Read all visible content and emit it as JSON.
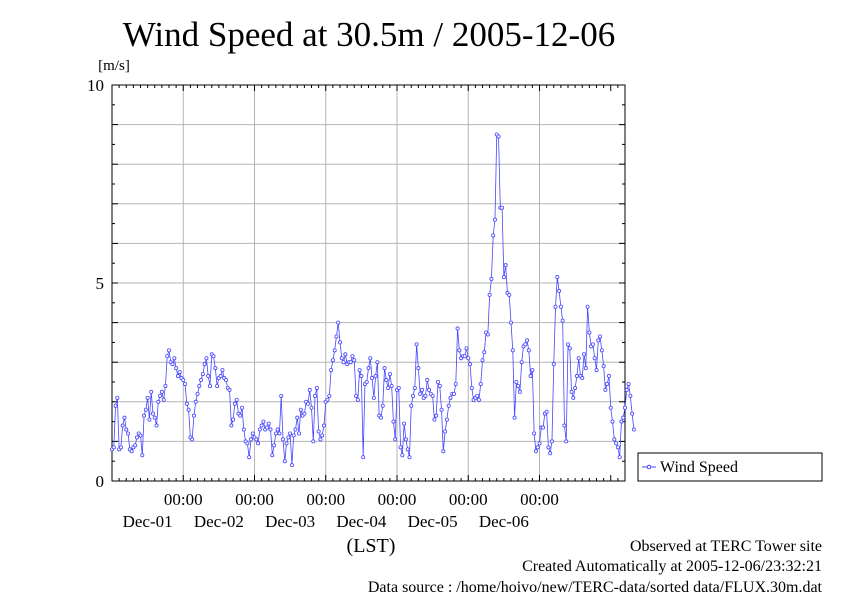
{
  "chart_data": {
    "type": "line",
    "title": "Wind Speed at 30.5m / 2005-12-06",
    "ylabel": "[m/s]",
    "xlabel": "(LST)",
    "ylim": [
      0,
      10
    ],
    "xlim": [
      0,
      144
    ],
    "y_ticks": [
      0,
      5,
      10
    ],
    "y_tick_labels": [
      "0",
      "5",
      "10"
    ],
    "x_ticks": [
      20,
      40,
      60,
      80,
      100,
      120
    ],
    "x_tick_labels": [
      "00:00",
      "00:00",
      "00:00",
      "00:00",
      "00:00",
      "00:00"
    ],
    "x_date_labels": [
      "Dec-01",
      "Dec-02",
      "Dec-03",
      "Dec-04",
      "Dec-05",
      "Dec-06"
    ],
    "x_unit": "hours",
    "grid": true,
    "legend_position": "right",
    "series": [
      {
        "name": "Wind Speed",
        "color": "#4646ff",
        "marker": "circle",
        "x_step_hours": 0.5,
        "values": [
          0.8,
          0.85,
          1.9,
          2.1,
          0.8,
          0.85,
          1.4,
          1.6,
          1.3,
          1.2,
          0.8,
          0.75,
          0.85,
          0.9,
          1.1,
          1.2,
          1.15,
          0.65,
          1.65,
          1.8,
          2.1,
          1.55,
          2.25,
          1.7,
          1.6,
          1.4,
          2.0,
          2.15,
          2.25,
          2.05,
          2.4,
          3.15,
          3.3,
          3.0,
          2.95,
          3.1,
          2.85,
          2.65,
          2.75,
          2.6,
          2.55,
          2.45,
          1.95,
          1.8,
          1.1,
          1.05,
          1.65,
          2.0,
          2.2,
          2.4,
          2.55,
          2.7,
          2.95,
          3.1,
          2.65,
          2.4,
          3.2,
          3.15,
          2.85,
          2.4,
          2.6,
          2.65,
          2.8,
          2.6,
          2.55,
          2.35,
          2.3,
          1.4,
          1.55,
          1.95,
          2.05,
          1.7,
          1.65,
          1.85,
          1.3,
          1.0,
          0.95,
          0.6,
          1.05,
          1.2,
          1.1,
          1.05,
          0.95,
          1.3,
          1.4,
          1.5,
          1.3,
          1.35,
          1.45,
          1.3,
          0.65,
          0.9,
          1.2,
          1.3,
          1.2,
          2.15,
          1.05,
          0.5,
          0.95,
          1.1,
          1.2,
          0.4,
          1.15,
          1.3,
          1.6,
          1.2,
          1.8,
          1.65,
          1.7,
          2.0,
          1.95,
          2.3,
          1.85,
          1.0,
          2.15,
          2.35,
          1.25,
          1.05,
          1.15,
          1.4,
          2.0,
          2.05,
          2.15,
          2.8,
          3.05,
          3.3,
          3.65,
          4.0,
          3.5,
          3.1,
          3.0,
          3.2,
          2.95,
          3.0,
          3.0,
          3.15,
          3.05,
          2.15,
          2.05,
          2.8,
          2.65,
          0.6,
          2.45,
          2.5,
          2.85,
          3.1,
          2.6,
          2.1,
          2.65,
          3.0,
          1.65,
          1.6,
          1.9,
          2.85,
          2.55,
          2.35,
          2.7,
          2.4,
          1.5,
          1.05,
          2.3,
          2.35,
          0.85,
          0.65,
          1.45,
          1.05,
          0.8,
          0.6,
          1.9,
          2.15,
          2.35,
          3.45,
          2.85,
          2.2,
          2.3,
          2.1,
          2.15,
          2.55,
          2.3,
          2.2,
          2.15,
          1.55,
          1.65,
          2.5,
          2.4,
          1.8,
          0.75,
          1.25,
          1.55,
          1.9,
          2.1,
          2.2,
          2.2,
          2.45,
          3.85,
          3.3,
          3.1,
          3.15,
          3.15,
          3.35,
          3.1,
          2.95,
          2.35,
          2.05,
          2.1,
          2.15,
          2.05,
          2.45,
          3.05,
          3.25,
          3.75,
          3.7,
          4.7,
          5.1,
          6.2,
          6.6,
          8.75,
          8.7,
          6.9,
          6.9,
          5.15,
          5.45,
          4.75,
          4.7,
          4.0,
          3.3,
          1.6,
          2.5,
          2.4,
          2.25,
          3.0,
          3.4,
          3.45,
          3.55,
          3.3,
          2.65,
          2.8,
          1.2,
          0.75,
          0.85,
          0.95,
          1.35,
          1.35,
          1.7,
          1.75,
          0.85,
          0.7,
          1.0,
          2.95,
          4.4,
          5.15,
          4.8,
          4.4,
          4.05,
          1.4,
          1.0,
          3.45,
          3.35,
          2.25,
          2.1,
          2.35,
          2.65,
          3.1,
          2.65,
          2.6,
          3.2,
          2.85,
          4.4,
          3.75,
          3.4,
          3.45,
          3.1,
          2.8,
          3.55,
          3.65,
          3.3,
          2.9,
          2.3,
          2.45,
          2.65,
          1.85,
          1.5,
          1.05,
          0.95,
          0.85,
          0.6,
          1.5,
          1.6,
          1.85,
          2.3,
          2.45,
          2.15,
          1.7,
          1.3
        ]
      }
    ]
  },
  "footer": {
    "line1": "Observed at TERC Tower site",
    "line2": "Created Automatically at 2005-12-06/23:32:21",
    "line3": "Data source : /home/hoivo/new/TERC-data/sorted data/FLUX.30m.dat"
  }
}
